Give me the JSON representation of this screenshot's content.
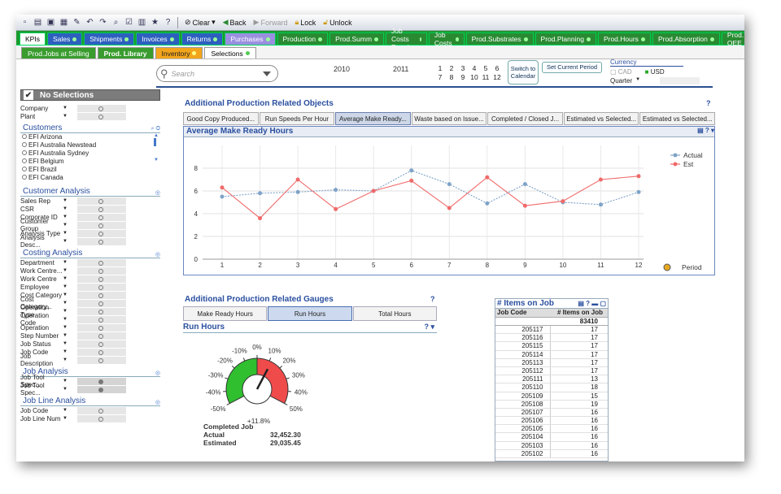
{
  "toolbar": {
    "clear": "Clear",
    "back": "Back",
    "forward": "Forward",
    "lock": "Lock",
    "unlock": "Unlock"
  },
  "sheet_tabs": [
    "KPIs",
    "Sales",
    "Shipments",
    "Invoices",
    "Returns",
    "Purchases",
    "Production",
    "Prod.Summ",
    "Job Costs Enquiry",
    "Job Costs",
    "Prod.Substrates",
    "Prod.Planning",
    "Prod.Hours",
    "Prod.Absorption",
    "Prod. OEE"
  ],
  "sub_tabs": [
    "Prod.Jobs at Selling",
    "Prod. Library",
    "Inventory",
    "Selections"
  ],
  "search": {
    "placeholder": "Search"
  },
  "years": [
    "2010",
    "2011"
  ],
  "months": [
    "1",
    "2",
    "3",
    "4",
    "5",
    "6",
    "7",
    "8",
    "9",
    "10",
    "11",
    "12"
  ],
  "switch_calendar": "Switch to Calendar",
  "set_period": "Set Current Period",
  "currency": {
    "title": "Currency",
    "cad": "CAD",
    "usd": "USD",
    "quarter": "Quarter"
  },
  "no_selections": "No Selections",
  "filters_top": [
    "Company",
    "Plant"
  ],
  "customers": {
    "title": "Customers",
    "items": [
      "EFI Arizona",
      "EFI Australia Newstead",
      "EFI Australia Sydney",
      "EFI Belgium",
      "EFI Brazil",
      "EFI Canada"
    ]
  },
  "customer_analysis": {
    "title": "Customer Analysis",
    "items": [
      "Sales Rep",
      "CSR",
      "Corporate ID",
      "Customer Group",
      "Analysis Type",
      "Analysis Desc..."
    ]
  },
  "costing_analysis": {
    "title": "Costing Analysis",
    "items": [
      "Department",
      "Work Centre...",
      "Work Centre",
      "Employee",
      "Cost Category",
      "Cost Category...",
      "Operation Type",
      "Operation Code",
      "Operation",
      "Step Number",
      "Job Status",
      "Job Code",
      "Job Description"
    ]
  },
  "job_analysis": {
    "title": "Job Analysis",
    "items": [
      "Job Tool Spec...",
      "Job Tool Spec..."
    ]
  },
  "job_line_analysis": {
    "title": "Job Line Analysis",
    "items": [
      "Job Code",
      "Job Line Num"
    ]
  },
  "objects_title": "Additional Production Related Objects",
  "chart_tabs": [
    "Good Copy Produced...",
    "Run Speeds Per Hour",
    "Average Make Ready...",
    "Waste based on Issue...",
    "Completed / Closed J...",
    "Estimated vs Selected...",
    "Estimated vs Selected..."
  ],
  "chart_data": {
    "type": "line",
    "title": "Average Make Ready Hours",
    "xlabel": "Period",
    "ylabel": "",
    "categories": [
      "1",
      "2",
      "3",
      "4",
      "5",
      "6",
      "7",
      "8",
      "9",
      "10",
      "11",
      "12"
    ],
    "ylim": [
      0,
      10
    ],
    "yticks": [
      0,
      2,
      4,
      6,
      8
    ],
    "legend": "top-right",
    "grid": true,
    "series": [
      {
        "name": "Actual",
        "color": "#7fa3c8",
        "values": [
          5.5,
          5.8,
          5.9,
          6.1,
          6.0,
          7.8,
          6.6,
          4.9,
          6.6,
          5.0,
          4.8,
          5.9
        ]
      },
      {
        "name": "Est",
        "color": "#f06a6a",
        "values": [
          6.3,
          3.6,
          7.0,
          4.4,
          6.0,
          6.9,
          4.5,
          7.2,
          4.7,
          5.1,
          7.0,
          7.3
        ]
      }
    ]
  },
  "gauges_title": "Additional Production Related Gauges",
  "gauge_tabs": [
    "Make Ready Hours",
    "Run Hours",
    "Total Hours"
  ],
  "gauge_panel_title": "Run Hours",
  "gauge": {
    "value_label": "+11.8%",
    "value": 11.8,
    "ticks": [
      "-50%",
      "-40%",
      "-30%",
      "-20%",
      "-10%",
      "0%",
      "10%",
      "20%",
      "30%",
      "40%",
      "50%"
    ],
    "green": "#2fbf2f",
    "red": "#f04b4b"
  },
  "totals": {
    "label": "Completed Job",
    "actual_label": "Actual",
    "actual": "32,452.30",
    "estimated_label": "Estimated",
    "estimated": "29,035.45"
  },
  "items_table": {
    "title": "# Items on Job",
    "col1": "Job Code",
    "col2": "# Items on Job",
    "total": "83410",
    "rows": [
      [
        "205117",
        "17"
      ],
      [
        "205116",
        "17"
      ],
      [
        "205115",
        "17"
      ],
      [
        "205114",
        "17"
      ],
      [
        "205113",
        "17"
      ],
      [
        "205112",
        "17"
      ],
      [
        "205111",
        "13"
      ],
      [
        "205110",
        "18"
      ],
      [
        "205109",
        "15"
      ],
      [
        "205108",
        "19"
      ],
      [
        "205107",
        "16"
      ],
      [
        "205106",
        "16"
      ],
      [
        "205105",
        "16"
      ],
      [
        "205104",
        "16"
      ],
      [
        "205103",
        "16"
      ],
      [
        "205102",
        "16"
      ]
    ]
  }
}
